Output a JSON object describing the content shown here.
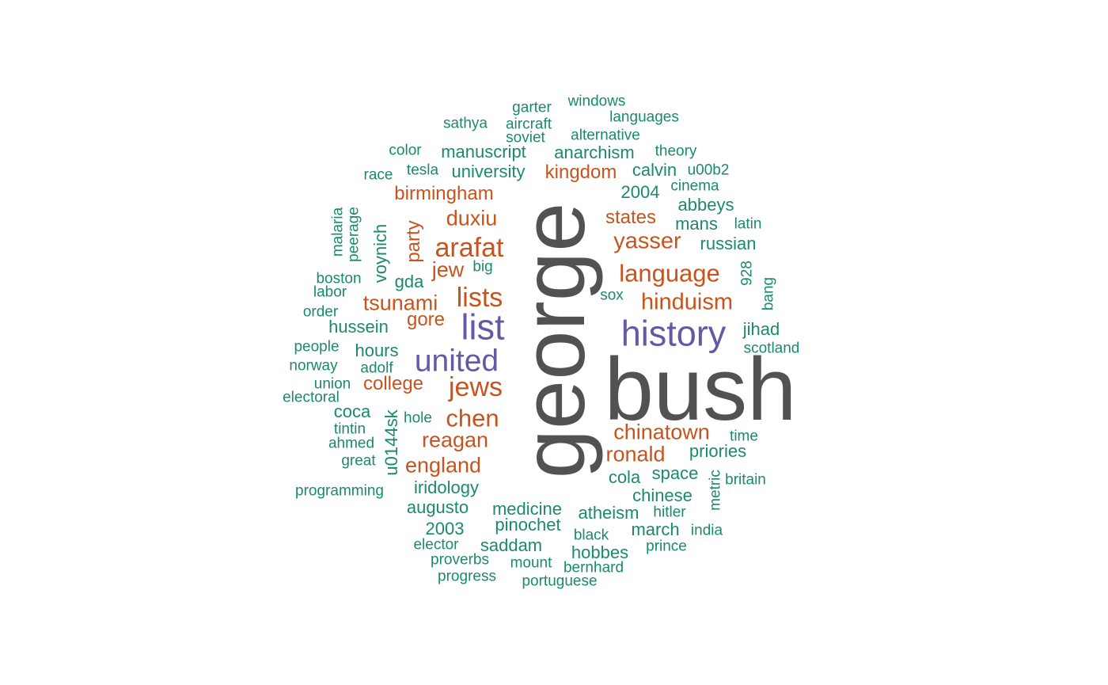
{
  "colors": {
    "gray": "#525252",
    "purple": "#6459a3",
    "orange": "#c9531c",
    "green": "#1b8a6b",
    "background": "#ffffff"
  },
  "words": [
    {
      "text": "george",
      "color": "gray"
    },
    {
      "text": "bush",
      "color": "gray"
    },
    {
      "text": "history",
      "color": "purple"
    },
    {
      "text": "list",
      "color": "purple"
    },
    {
      "text": "united",
      "color": "purple"
    },
    {
      "text": "arafat",
      "color": "orange"
    },
    {
      "text": "lists",
      "color": "orange"
    },
    {
      "text": "jews",
      "color": "orange"
    },
    {
      "text": "chen",
      "color": "orange"
    },
    {
      "text": "language",
      "color": "orange"
    },
    {
      "text": "yasser",
      "color": "orange"
    },
    {
      "text": "hinduism",
      "color": "orange"
    },
    {
      "text": "tsunami",
      "color": "orange"
    },
    {
      "text": "duxiu",
      "color": "orange"
    },
    {
      "text": "jew",
      "color": "orange"
    },
    {
      "text": "reagan",
      "color": "orange"
    },
    {
      "text": "chinatown",
      "color": "orange"
    },
    {
      "text": "ronald",
      "color": "orange"
    },
    {
      "text": "england",
      "color": "orange"
    },
    {
      "text": "college",
      "color": "orange"
    },
    {
      "text": "gore",
      "color": "orange"
    },
    {
      "text": "birmingham",
      "color": "orange"
    },
    {
      "text": "kingdom",
      "color": "orange"
    },
    {
      "text": "states",
      "color": "orange"
    },
    {
      "text": "party",
      "color": "orange"
    },
    {
      "text": "manuscript",
      "color": "green"
    },
    {
      "text": "anarchism",
      "color": "green"
    },
    {
      "text": "university",
      "color": "green"
    },
    {
      "text": "calvin",
      "color": "green"
    },
    {
      "text": "u00b2",
      "color": "green"
    },
    {
      "text": "2004",
      "color": "green"
    },
    {
      "text": "cinema",
      "color": "green"
    },
    {
      "text": "abbeys",
      "color": "green"
    },
    {
      "text": "mans",
      "color": "green"
    },
    {
      "text": "latin",
      "color": "green"
    },
    {
      "text": "russian",
      "color": "green"
    },
    {
      "text": "garter",
      "color": "green"
    },
    {
      "text": "windows",
      "color": "green"
    },
    {
      "text": "languages",
      "color": "green"
    },
    {
      "text": "sathya",
      "color": "green"
    },
    {
      "text": "aircraft",
      "color": "green"
    },
    {
      "text": "soviet",
      "color": "green"
    },
    {
      "text": "alternative",
      "color": "green"
    },
    {
      "text": "color",
      "color": "green"
    },
    {
      "text": "theory",
      "color": "green"
    },
    {
      "text": "race",
      "color": "green"
    },
    {
      "text": "tesla",
      "color": "green"
    },
    {
      "text": "malaria",
      "color": "green"
    },
    {
      "text": "peerage",
      "color": "green"
    },
    {
      "text": "voynich",
      "color": "green"
    },
    {
      "text": "boston",
      "color": "green"
    },
    {
      "text": "big",
      "color": "green"
    },
    {
      "text": "gda",
      "color": "green"
    },
    {
      "text": "labor",
      "color": "green"
    },
    {
      "text": "order",
      "color": "green"
    },
    {
      "text": "hussein",
      "color": "green"
    },
    {
      "text": "people",
      "color": "green"
    },
    {
      "text": "hours",
      "color": "green"
    },
    {
      "text": "norway",
      "color": "green"
    },
    {
      "text": "adolf",
      "color": "green"
    },
    {
      "text": "union",
      "color": "green"
    },
    {
      "text": "electoral",
      "color": "green"
    },
    {
      "text": "coca",
      "color": "green"
    },
    {
      "text": "hole",
      "color": "green"
    },
    {
      "text": "u0144sk",
      "color": "green"
    },
    {
      "text": "tintin",
      "color": "green"
    },
    {
      "text": "ahmed",
      "color": "green"
    },
    {
      "text": "great",
      "color": "green"
    },
    {
      "text": "programming",
      "color": "green"
    },
    {
      "text": "iridology",
      "color": "green"
    },
    {
      "text": "augusto",
      "color": "green"
    },
    {
      "text": "2003",
      "color": "green"
    },
    {
      "text": "elector",
      "color": "green"
    },
    {
      "text": "proverbs",
      "color": "green"
    },
    {
      "text": "progress",
      "color": "green"
    },
    {
      "text": "medicine",
      "color": "green"
    },
    {
      "text": "pinochet",
      "color": "green"
    },
    {
      "text": "saddam",
      "color": "green"
    },
    {
      "text": "mount",
      "color": "green"
    },
    {
      "text": "portuguese",
      "color": "green"
    },
    {
      "text": "atheism",
      "color": "green"
    },
    {
      "text": "black",
      "color": "green"
    },
    {
      "text": "hobbes",
      "color": "green"
    },
    {
      "text": "bernhard",
      "color": "green"
    },
    {
      "text": "march",
      "color": "green"
    },
    {
      "text": "prince",
      "color": "green"
    },
    {
      "text": "india",
      "color": "green"
    },
    {
      "text": "hitler",
      "color": "green"
    },
    {
      "text": "chinese",
      "color": "green"
    },
    {
      "text": "cola",
      "color": "green"
    },
    {
      "text": "space",
      "color": "green"
    },
    {
      "text": "metric",
      "color": "green"
    },
    {
      "text": "britain",
      "color": "green"
    },
    {
      "text": "priories",
      "color": "green"
    },
    {
      "text": "time",
      "color": "green"
    },
    {
      "text": "jihad",
      "color": "green"
    },
    {
      "text": "scotland",
      "color": "green"
    },
    {
      "text": "928",
      "color": "green"
    },
    {
      "text": "bang",
      "color": "green"
    },
    {
      "text": "sox",
      "color": "green"
    }
  ]
}
